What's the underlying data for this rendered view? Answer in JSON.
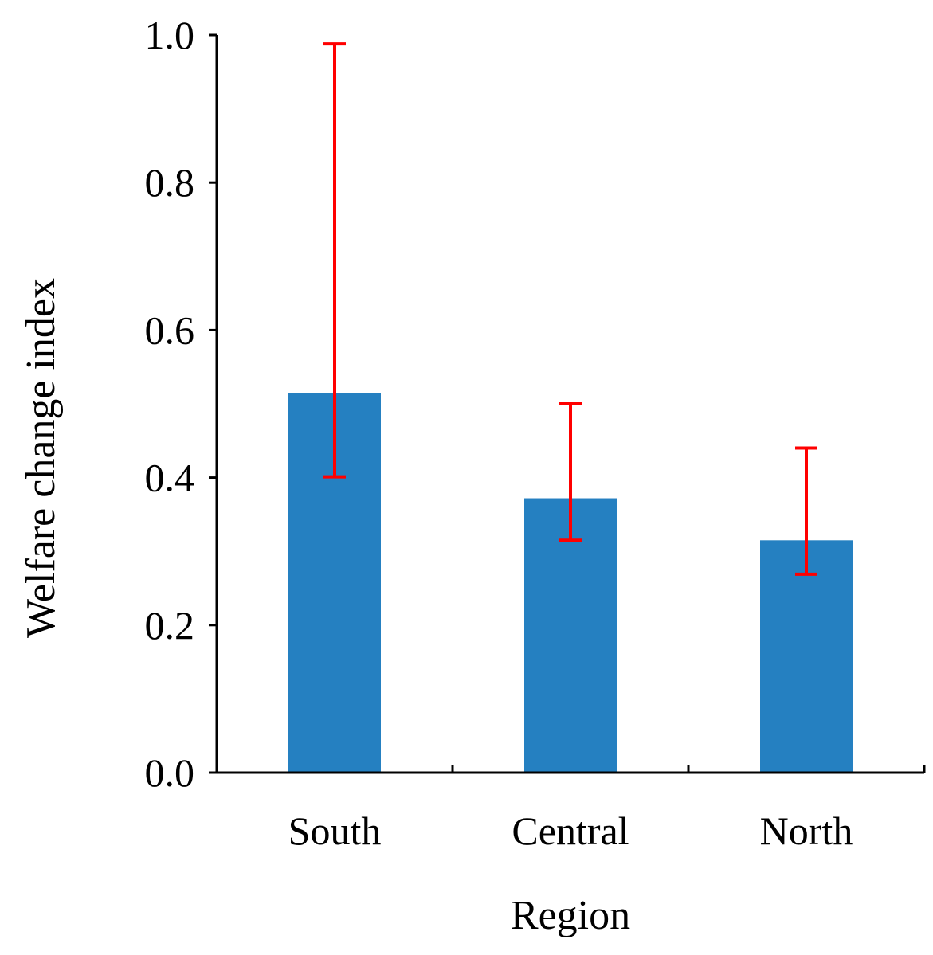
{
  "chart_data": {
    "type": "bar",
    "title": "",
    "xlabel": "Region",
    "ylabel": "Welfare change index",
    "categories": [
      "South",
      "Central",
      "North"
    ],
    "values": [
      0.515,
      0.372,
      0.315
    ],
    "error_low": [
      0.401,
      0.315,
      0.269
    ],
    "error_high": [
      0.988,
      0.5,
      0.44
    ],
    "ylim": [
      0.0,
      1.0
    ],
    "yticks": [
      "0.0",
      "0.2",
      "0.4",
      "0.6",
      "0.8",
      "1.0"
    ],
    "ytick_values": [
      0.0,
      0.2,
      0.4,
      0.6,
      0.8,
      1.0
    ],
    "grid": false,
    "legend": "none",
    "bar_color": "#2580c1",
    "error_color": "#ff0000"
  }
}
